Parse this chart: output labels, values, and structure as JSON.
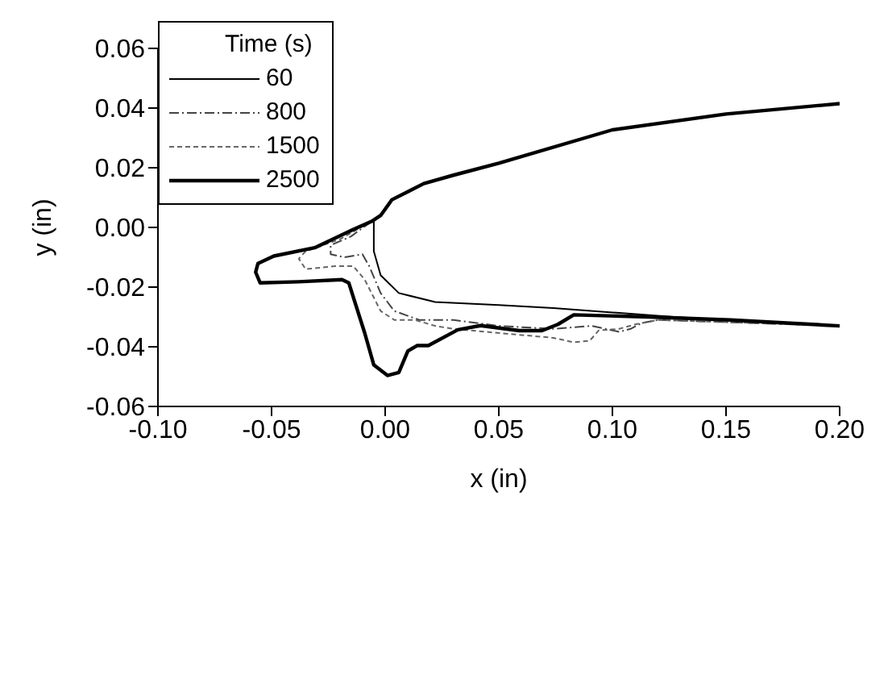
{
  "chart_data": {
    "type": "line",
    "xlabel": "x (in)",
    "ylabel": "y (in)",
    "legend_title": "Time (s)",
    "legend": "top left",
    "marker": "none",
    "grid": false,
    "xlim": [
      -0.1,
      0.2
    ],
    "xticks": [
      {
        "value": -0.1,
        "label": "-0.10"
      },
      {
        "value": -0.05,
        "label": "-0.05"
      },
      {
        "value": 0,
        "label": "0.00"
      },
      {
        "value": 0.05,
        "label": "0.05"
      },
      {
        "value": 0.1,
        "label": "0.10"
      },
      {
        "value": 0.15,
        "label": "0.15"
      },
      {
        "value": 0.2,
        "label": "0.20"
      }
    ],
    "ylim": [
      -0.06,
      0.06
    ],
    "yticks": [
      {
        "value": -0.06,
        "label": "-0.06"
      },
      {
        "value": -0.04,
        "label": "-0.04"
      },
      {
        "value": -0.02,
        "label": "-0.02"
      },
      {
        "value": 0,
        "label": "0.00"
      },
      {
        "value": 0.02,
        "label": "0.02"
      },
      {
        "value": 0.04,
        "label": "0.04"
      },
      {
        "value": 0.06,
        "label": "0.06"
      }
    ],
    "series": [
      {
        "name": "60",
        "color": "#000000",
        "line_style": "solid",
        "x": [
          -0.005,
          -0.005,
          -0.002,
          0.006,
          0.022,
          0.05,
          0.074,
          0.1,
          0.127,
          0.16,
          0.2
        ],
        "values": [
          0.002,
          -0.008,
          -0.016,
          -0.022,
          -0.025,
          -0.026,
          -0.027,
          -0.0285,
          -0.03,
          -0.0315,
          -0.033
        ]
      },
      {
        "name": "800",
        "color": "#444444",
        "line_style": "dashed",
        "x": [
          -0.006,
          -0.015,
          -0.024,
          -0.024,
          -0.018,
          -0.01,
          -0.007,
          -0.002,
          0.004,
          0.015,
          0.03,
          0.05,
          0.074,
          0.091,
          0.103,
          0.108,
          0.113,
          0.12,
          0.16,
          0.2
        ],
        "values": [
          0.002,
          -0.003,
          -0.006,
          -0.009,
          -0.01,
          -0.009,
          -0.013,
          -0.022,
          -0.028,
          -0.031,
          -0.031,
          -0.033,
          -0.034,
          -0.033,
          -0.035,
          -0.034,
          -0.032,
          -0.031,
          -0.032,
          -0.033
        ]
      },
      {
        "name": "1500",
        "color": "#666666",
        "line_style": "dotted",
        "x": [
          -0.006,
          -0.02,
          -0.035,
          -0.038,
          -0.035,
          -0.022,
          -0.014,
          -0.009,
          -0.002,
          0.004,
          0.013,
          0.022,
          0.03,
          0.059,
          0.074,
          0.083,
          0.09,
          0.094,
          0.103,
          0.11,
          0.12,
          0.16,
          0.2
        ],
        "values": [
          0.002,
          -0.004,
          -0.008,
          -0.0105,
          -0.014,
          -0.013,
          -0.013,
          -0.0175,
          -0.028,
          -0.031,
          -0.031,
          -0.033,
          -0.034,
          -0.036,
          -0.037,
          -0.0385,
          -0.038,
          -0.0345,
          -0.034,
          -0.0325,
          -0.031,
          -0.032,
          -0.033
        ]
      },
      {
        "name": "2500",
        "color": "#000000",
        "line_style": "solid",
        "x": [
          0.2,
          0.15,
          0.1,
          0.05,
          0.03,
          0.017,
          0.003,
          -0.002,
          -0.006,
          -0.014,
          -0.031,
          -0.049,
          -0.056,
          -0.057,
          -0.055,
          -0.038,
          -0.019,
          -0.016,
          -0.009,
          -0.005,
          0.001,
          0.006,
          0.01,
          0.014,
          0.019,
          0.032,
          0.042,
          0.059,
          0.069,
          0.076,
          0.083,
          0.116,
          0.152,
          0.2
        ],
        "values": [
          0.0415,
          0.038,
          0.0327,
          0.0215,
          0.0175,
          0.0147,
          0.0093,
          0.004,
          0.002,
          -0.0007,
          -0.0068,
          -0.0096,
          -0.0121,
          -0.015,
          -0.0186,
          -0.0182,
          -0.0175,
          -0.0186,
          -0.0354,
          -0.0461,
          -0.0496,
          -0.0486,
          -0.0414,
          -0.0396,
          -0.0396,
          -0.0343,
          -0.0329,
          -0.0346,
          -0.0346,
          -0.0325,
          -0.0293,
          -0.03,
          -0.031,
          -0.033
        ]
      }
    ]
  }
}
